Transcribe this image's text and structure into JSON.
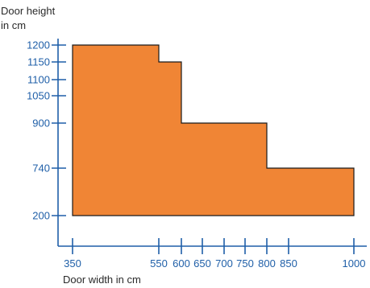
{
  "chart_data": {
    "type": "area",
    "ylabel_line1": "Door height",
    "ylabel_line2": "in cm",
    "xlabel": "Door width in cm",
    "x_ticks": [
      350,
      550,
      600,
      650,
      700,
      750,
      800,
      850,
      1000
    ],
    "y_ticks": [
      200,
      740,
      900,
      1050,
      1100,
      1150,
      1200
    ],
    "outline": [
      {
        "x": 350,
        "y": 200
      },
      {
        "x": 350,
        "y": 1200
      },
      {
        "x": 550,
        "y": 1200
      },
      {
        "x": 550,
        "y": 1150
      },
      {
        "x": 600,
        "y": 1150
      },
      {
        "x": 600,
        "y": 900
      },
      {
        "x": 800,
        "y": 900
      },
      {
        "x": 800,
        "y": 740
      },
      {
        "x": 1000,
        "y": 740
      },
      {
        "x": 1000,
        "y": 200
      }
    ],
    "fill_color": "#F08535",
    "axis_color": "#1f5fa8",
    "grid": false
  }
}
